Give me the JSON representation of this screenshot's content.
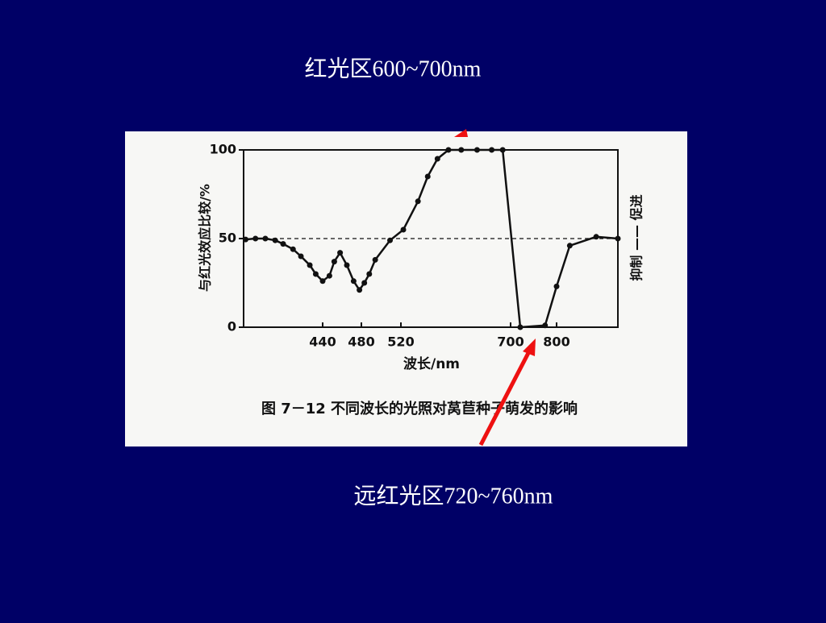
{
  "slide": {
    "annotations": [
      "红光区600~700nm",
      "远红光区720~760nm"
    ]
  },
  "chart_data": {
    "type": "line",
    "title": "图 7－12   不同波长的光照对莴苣种子萌发的影响",
    "xlabel": "波长/nm",
    "ylabel": "与红光效应比较/%",
    "y2label": "抑制 —— 促进",
    "x": [
      362,
      372,
      382,
      392,
      400,
      410,
      418,
      427,
      433,
      440,
      447,
      452,
      458,
      465,
      472,
      478,
      483,
      488,
      494,
      509,
      524,
      548,
      564,
      580,
      598,
      619,
      645,
      669,
      687,
      721,
      775,
      800,
      828,
      884,
      930
    ],
    "values": [
      49.5,
      50,
      50,
      49,
      47,
      44,
      40,
      35,
      30,
      26,
      29,
      37,
      42,
      35,
      26,
      21,
      25,
      30,
      38,
      49,
      55,
      71,
      85,
      95,
      100,
      100,
      100,
      100,
      100,
      0,
      1,
      23,
      46,
      51,
      50
    ],
    "color": "#111111",
    "xlim": [
      360,
      930
    ],
    "xticks": [
      440,
      480,
      520,
      700,
      800
    ],
    "ylim": [
      0,
      100
    ],
    "yticks": [
      0,
      50,
      100
    ],
    "reference_line": 50
  }
}
